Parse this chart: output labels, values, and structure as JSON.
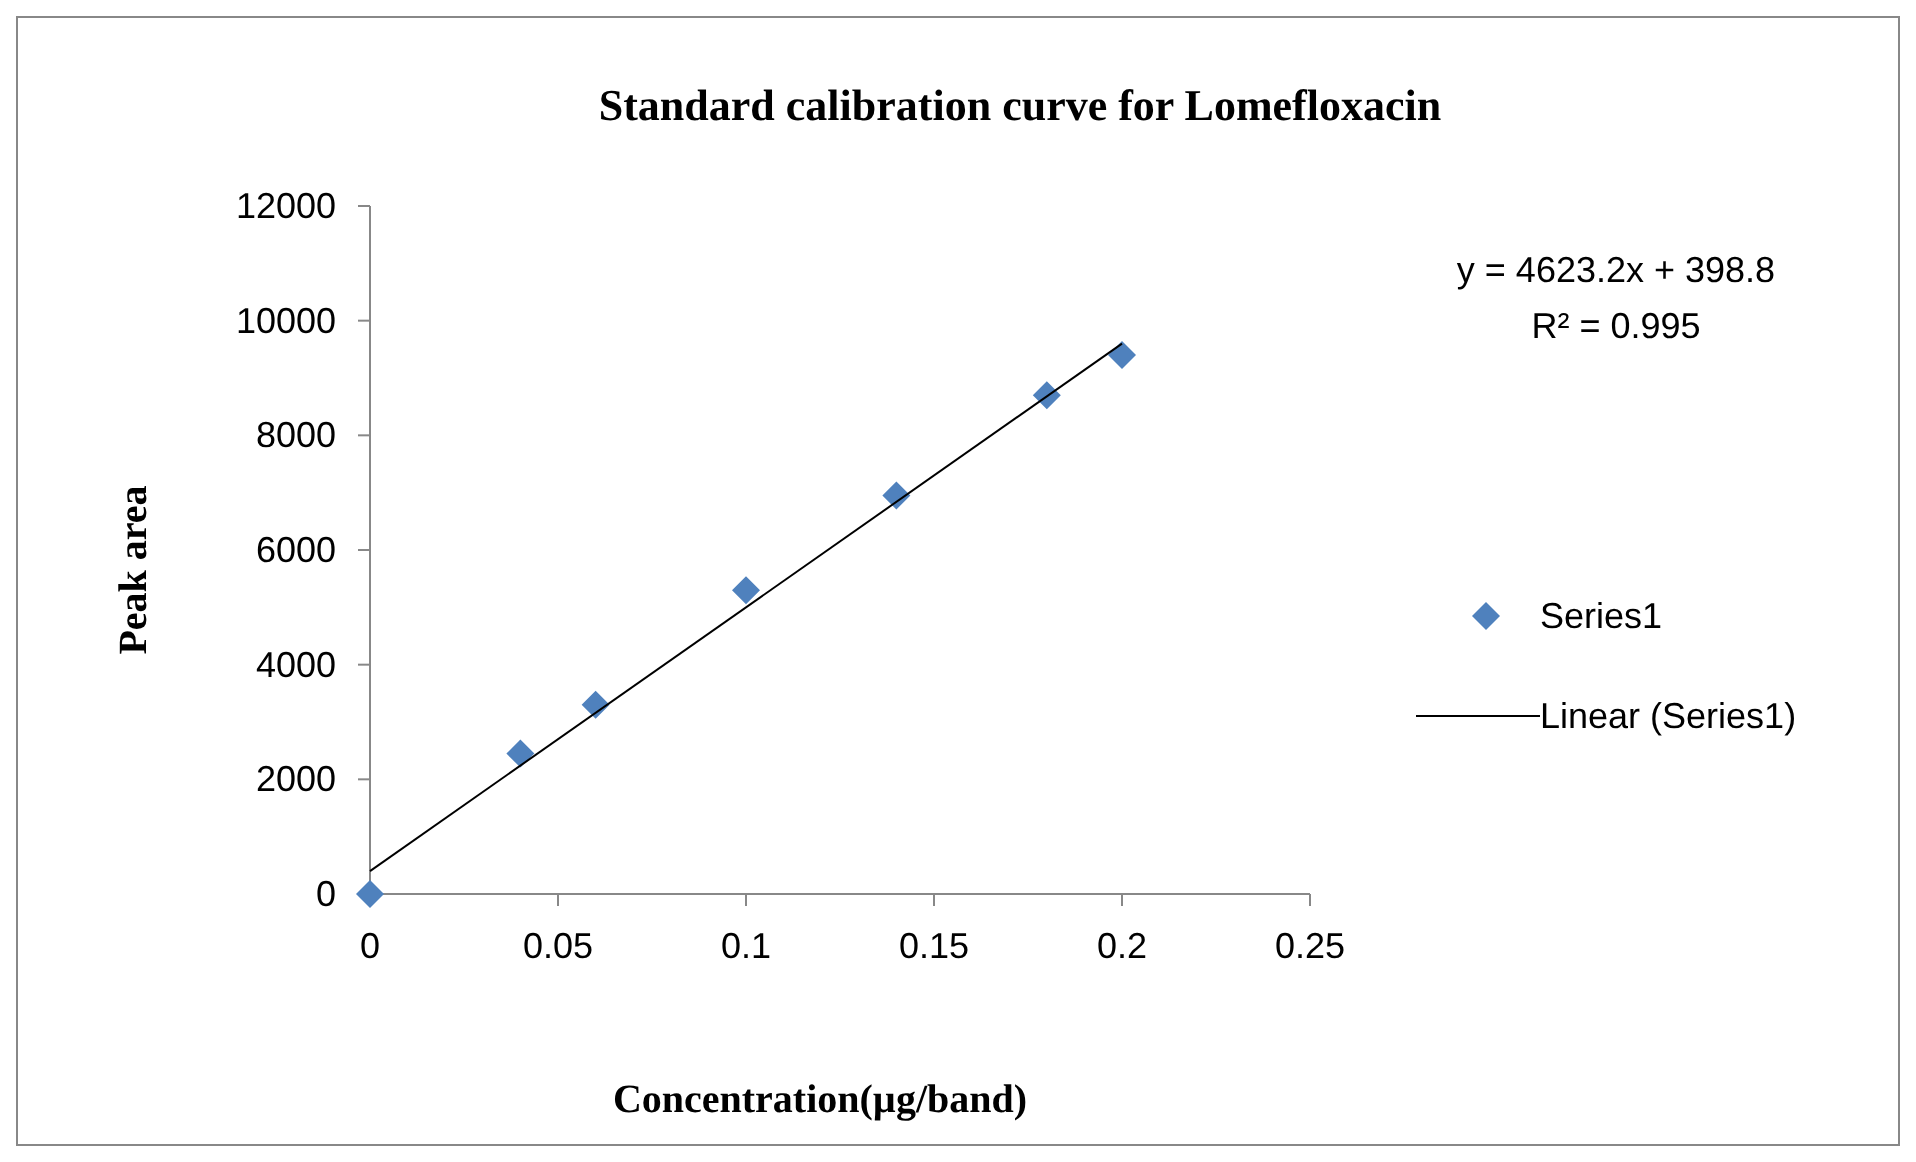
{
  "chart_data": {
    "type": "scatter",
    "title": "Standard calibration curve for Lomefloxacin",
    "xlabel": "Concentration(µg/band)",
    "ylabel": "Peak area",
    "xlim": [
      0,
      0.25
    ],
    "xticks": [
      0,
      0.05,
      0.1,
      0.15,
      0.2,
      0.25
    ],
    "ylim": [
      0,
      12000
    ],
    "yticks": [
      0,
      2000,
      4000,
      6000,
      8000,
      10000,
      12000
    ],
    "grid": false,
    "legend": "right",
    "annotations": [
      "y = 4623.2x + 398.8",
      "R² = 0.995"
    ],
    "series": [
      {
        "name": "Series1",
        "type": "scatter",
        "marker": "diamond",
        "color": "#4f81bd",
        "x": [
          0,
          0.04,
          0.06,
          0.1,
          0.14,
          0.18,
          0.2
        ],
        "values": [
          0,
          2450,
          3300,
          5300,
          6950,
          8700,
          9400
        ]
      },
      {
        "name": "Linear (Series1)",
        "type": "line",
        "marker": "none",
        "line_style": "solid",
        "color": "#000000",
        "x": [
          0,
          0.2
        ],
        "values": [
          400,
          9600
        ]
      }
    ]
  }
}
